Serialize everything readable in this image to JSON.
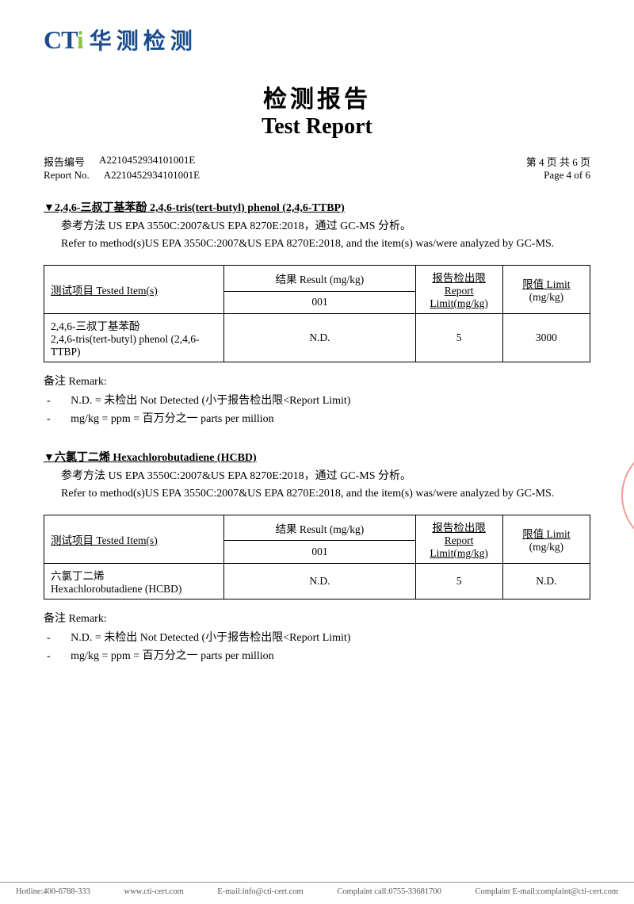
{
  "logo": {
    "cti": "CT",
    "dot": "i",
    "cn": "华测检测"
  },
  "title": {
    "cn": "检测报告",
    "en": "Test Report"
  },
  "meta": {
    "label_cn": "报告编号",
    "label_en": "Report No.",
    "number_cn": "A2210452934101001E",
    "number_en": "A2210452934101001E",
    "page_cn": "第 4 页  共 6 页",
    "page_en": "Page 4 of 6"
  },
  "section1": {
    "heading": "▼2,4,6-三叔丁基苯酚  2,4,6-tris(tert-butyl) phenol (2,4,6-TTBP)",
    "method_cn": "参考方法 US EPA 3550C:2007&US EPA 8270E:2018，通过 GC-MS 分析。",
    "method_en": "Refer to method(s)US EPA 3550C:2007&US EPA 8270E:2018, and the item(s) was/were analyzed by GC-MS.",
    "table": {
      "h_item": "测试项目 Tested Item(s)",
      "h_result": "结果 Result (mg/kg)",
      "h_sub": "001",
      "h_report": "报告检出限",
      "h_report2": "Report Limit(mg/kg)",
      "h_limit": "限值 Limit",
      "h_limit2": "(mg/kg)",
      "row_item": "2,4,6-三叔丁基苯酚\n2,4,6-tris(tert-butyl) phenol (2,4,6-TTBP)",
      "row_result": "N.D.",
      "row_report": "5",
      "row_limit": "3000"
    }
  },
  "remark": {
    "title": "备注 Remark:",
    "l1": "N.D. = 未检出 Not Detected (小于报告检出限<Report Limit)",
    "l2": "mg/kg = ppm = 百万分之一 parts per million"
  },
  "section2": {
    "heading": "▼六氯丁二烯  Hexachlorobutadiene (HCBD)",
    "method_cn": "参考方法 US EPA 3550C:2007&US EPA 8270E:2018，通过 GC-MS 分析。",
    "method_en": "Refer to method(s)US EPA 3550C:2007&US EPA 8270E:2018, and the item(s) was/were analyzed by GC-MS.",
    "table": {
      "h_item": "测试项目 Tested Item(s)",
      "h_result": "结果 Result (mg/kg)",
      "h_sub": "001",
      "h_report": "报告检出限",
      "h_report2": "Report Limit(mg/kg)",
      "h_limit": "限值 Limit",
      "h_limit2": "(mg/kg)",
      "row_item": "六氯丁二烯\nHexachlorobutadiene (HCBD)",
      "row_result": "N.D.",
      "row_report": "5",
      "row_limit": "N.D."
    }
  },
  "footer": {
    "hotline": "Hotline:400-6788-333",
    "www": "www.cti-cert.com",
    "email": "E-mail:info@cti-cert.com",
    "complaint_call": "Complaint call:0755-33681700",
    "complaint_email": "Complaint E-mail:complaint@cti-cert.com"
  }
}
